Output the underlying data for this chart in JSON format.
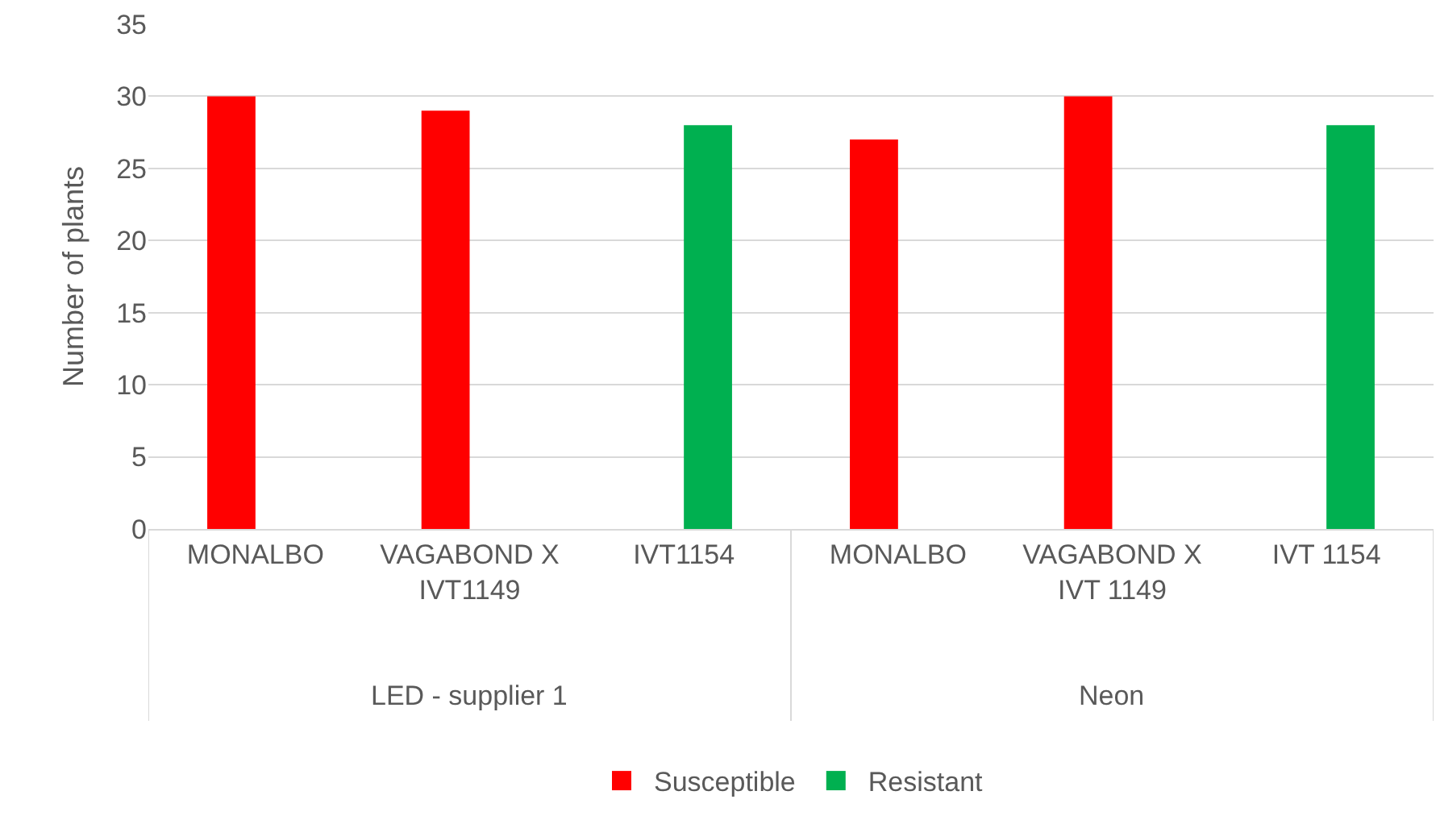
{
  "chart_data": {
    "type": "bar",
    "ylabel": "Number of plants",
    "categories": [
      "MONALBO",
      "VAGABOND X\nIVT1149",
      "IVT1154",
      "MONALBO",
      "VAGABOND X\nIVT 1149",
      "IVT 1154"
    ],
    "series": [
      {
        "name": "Susceptible",
        "color": "#ff0000",
        "values": [
          30,
          29,
          null,
          27,
          30,
          null
        ]
      },
      {
        "name": "Resistant",
        "color": "#00b050",
        "values": [
          null,
          null,
          28,
          null,
          null,
          28
        ]
      }
    ],
    "annotations": [
      "LED - supplier 1",
      "Neon"
    ],
    "ylim": [
      0,
      35
    ],
    "yticks": [
      0,
      5,
      10,
      15,
      20,
      25,
      30,
      35
    ],
    "grid": "y",
    "legend": "bottom"
  }
}
